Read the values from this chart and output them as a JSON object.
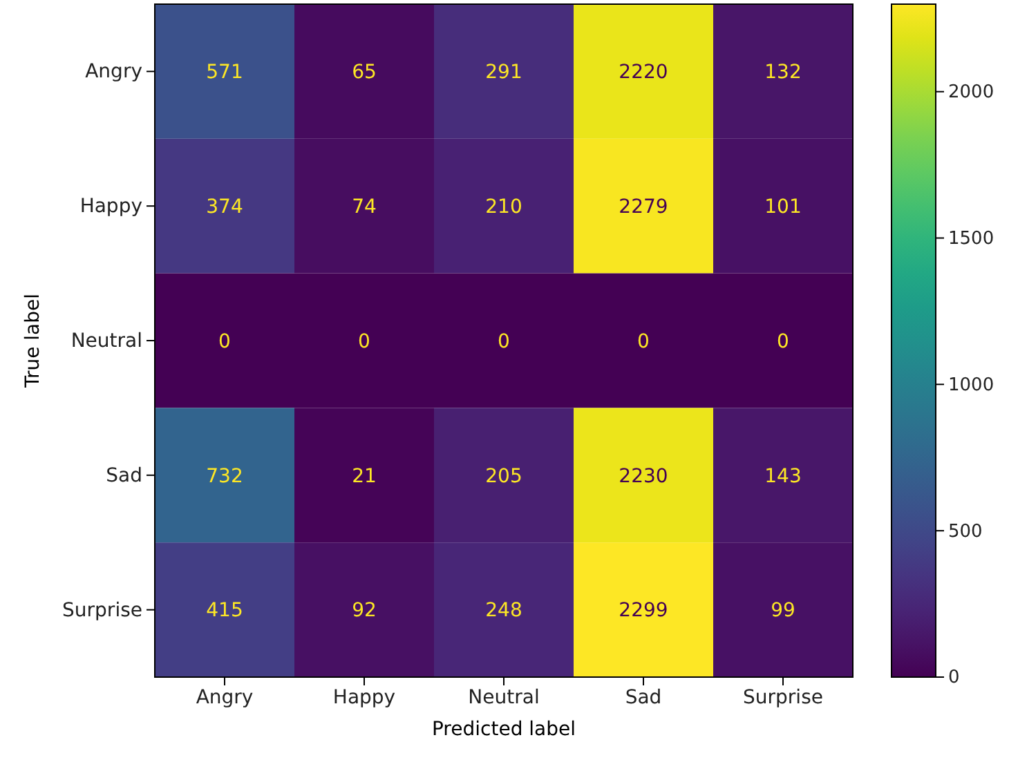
{
  "chart_data": {
    "type": "heatmap",
    "xlabel": "Predicted label",
    "ylabel": "True label",
    "categories": [
      "Angry",
      "Happy",
      "Neutral",
      "Sad",
      "Surprise"
    ],
    "y_categories": [
      "Angry",
      "Happy",
      "Neutral",
      "Sad",
      "Surprise"
    ],
    "cells": [
      [
        571,
        65,
        291,
        2220,
        132
      ],
      [
        374,
        74,
        210,
        2279,
        101
      ],
      [
        0,
        0,
        0,
        0,
        0
      ],
      [
        732,
        21,
        205,
        2230,
        143
      ],
      [
        415,
        92,
        248,
        2299,
        99
      ]
    ],
    "clim": [
      0,
      2299
    ],
    "cticks": [
      0,
      500,
      1000,
      1500,
      2000
    ],
    "data_labels": true
  }
}
